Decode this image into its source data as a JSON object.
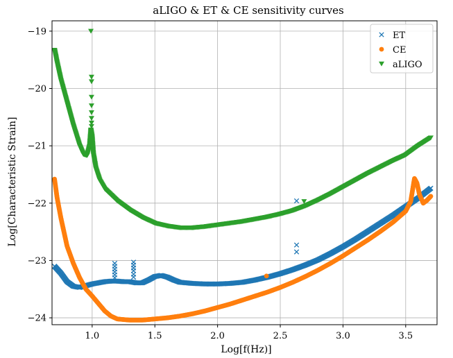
{
  "chart_data": {
    "type": "scatter",
    "title": "aLIGO & ET & CE sensitivity curves",
    "xlabel": "Log[f(Hz)]",
    "ylabel": "Log[Characteristic Strain]",
    "xlim": [
      0.68,
      3.75
    ],
    "ylim": [
      -24.12,
      -18.82
    ],
    "xticks": [
      1.0,
      1.5,
      2.0,
      2.5,
      3.0,
      3.5
    ],
    "xtick_labels": [
      "1.0",
      "1.5",
      "2.0",
      "2.5",
      "3.0",
      "3.5"
    ],
    "yticks": [
      -24,
      -23,
      -22,
      -21,
      -20,
      -19
    ],
    "ytick_labels": [
      "−24",
      "−23",
      "−22",
      "−21",
      "−20",
      "−19"
    ],
    "grid": true,
    "legend_position": "top-right",
    "series": [
      {
        "name": "ET",
        "marker": "x",
        "color": "#1f77b4",
        "points": [
          [
            0.7,
            -23.1
          ],
          [
            0.75,
            -23.22
          ],
          [
            0.8,
            -23.37
          ],
          [
            0.85,
            -23.45
          ],
          [
            0.9,
            -23.47
          ],
          [
            0.95,
            -23.44
          ],
          [
            1.0,
            -23.41
          ],
          [
            1.05,
            -23.39
          ],
          [
            1.1,
            -23.37
          ],
          [
            1.15,
            -23.36
          ],
          [
            1.2,
            -23.36
          ],
          [
            1.25,
            -23.37
          ],
          [
            1.3,
            -23.37
          ],
          [
            1.35,
            -23.39
          ],
          [
            1.4,
            -23.39
          ],
          [
            1.45,
            -23.34
          ],
          [
            1.5,
            -23.28
          ],
          [
            1.55,
            -23.26
          ],
          [
            1.6,
            -23.29
          ],
          [
            1.65,
            -23.34
          ],
          [
            1.7,
            -23.38
          ],
          [
            1.8,
            -23.4
          ],
          [
            1.9,
            -23.41
          ],
          [
            2.0,
            -23.41
          ],
          [
            2.1,
            -23.4
          ],
          [
            2.2,
            -23.38
          ],
          [
            2.3,
            -23.34
          ],
          [
            2.4,
            -23.29
          ],
          [
            2.5,
            -23.23
          ],
          [
            2.6,
            -23.16
          ],
          [
            2.7,
            -23.08
          ],
          [
            2.8,
            -22.99
          ],
          [
            2.9,
            -22.88
          ],
          [
            3.0,
            -22.76
          ],
          [
            3.1,
            -22.63
          ],
          [
            3.2,
            -22.49
          ],
          [
            3.3,
            -22.35
          ],
          [
            3.4,
            -22.21
          ],
          [
            3.5,
            -22.06
          ],
          [
            3.6,
            -21.91
          ],
          [
            3.7,
            -21.74
          ]
        ],
        "outliers": [
          [
            1.18,
            -23.05
          ],
          [
            1.18,
            -23.1
          ],
          [
            1.18,
            -23.15
          ],
          [
            1.18,
            -23.2
          ],
          [
            1.18,
            -23.25
          ],
          [
            1.18,
            -23.3
          ],
          [
            1.33,
            -23.03
          ],
          [
            1.33,
            -23.08
          ],
          [
            1.33,
            -23.13
          ],
          [
            1.33,
            -23.18
          ],
          [
            1.33,
            -23.24
          ],
          [
            1.33,
            -23.29
          ],
          [
            2.63,
            -21.96
          ],
          [
            2.63,
            -22.73
          ],
          [
            2.63,
            -22.85
          ]
        ]
      },
      {
        "name": "CE",
        "marker": "o",
        "color": "#ff7f0e",
        "points": [
          [
            0.7,
            -21.58
          ],
          [
            0.72,
            -21.9
          ],
          [
            0.75,
            -22.25
          ],
          [
            0.78,
            -22.55
          ],
          [
            0.8,
            -22.75
          ],
          [
            0.85,
            -23.05
          ],
          [
            0.9,
            -23.3
          ],
          [
            0.95,
            -23.5
          ],
          [
            1.0,
            -23.62
          ],
          [
            1.05,
            -23.75
          ],
          [
            1.1,
            -23.88
          ],
          [
            1.15,
            -23.97
          ],
          [
            1.2,
            -24.02
          ],
          [
            1.3,
            -24.04
          ],
          [
            1.4,
            -24.04
          ],
          [
            1.5,
            -24.02
          ],
          [
            1.6,
            -24.0
          ],
          [
            1.7,
            -23.97
          ],
          [
            1.8,
            -23.93
          ],
          [
            1.9,
            -23.88
          ],
          [
            2.0,
            -23.82
          ],
          [
            2.1,
            -23.76
          ],
          [
            2.2,
            -23.69
          ],
          [
            2.3,
            -23.62
          ],
          [
            2.4,
            -23.55
          ],
          [
            2.5,
            -23.47
          ],
          [
            2.6,
            -23.38
          ],
          [
            2.7,
            -23.28
          ],
          [
            2.8,
            -23.17
          ],
          [
            2.9,
            -23.05
          ],
          [
            3.0,
            -22.92
          ],
          [
            3.1,
            -22.78
          ],
          [
            3.2,
            -22.64
          ],
          [
            3.3,
            -22.49
          ],
          [
            3.4,
            -22.33
          ],
          [
            3.5,
            -22.14
          ],
          [
            3.54,
            -21.97
          ],
          [
            3.56,
            -21.7
          ],
          [
            3.57,
            -21.57
          ],
          [
            3.59,
            -21.65
          ],
          [
            3.61,
            -21.85
          ],
          [
            3.64,
            -22.0
          ],
          [
            3.67,
            -21.95
          ],
          [
            3.7,
            -21.88
          ]
        ],
        "outliers": [
          [
            2.39,
            -23.27
          ]
        ]
      },
      {
        "name": "aLIGO",
        "marker": "v",
        "color": "#2ca02c",
        "points": [
          [
            0.7,
            -19.33
          ],
          [
            0.72,
            -19.55
          ],
          [
            0.75,
            -19.85
          ],
          [
            0.8,
            -20.25
          ],
          [
            0.85,
            -20.65
          ],
          [
            0.9,
            -21.0
          ],
          [
            0.93,
            -21.15
          ],
          [
            0.96,
            -21.17
          ],
          [
            0.98,
            -21.0
          ],
          [
            0.99,
            -20.72
          ],
          [
            1.0,
            -20.85
          ],
          [
            1.01,
            -21.15
          ],
          [
            1.03,
            -21.4
          ],
          [
            1.06,
            -21.6
          ],
          [
            1.1,
            -21.75
          ],
          [
            1.2,
            -21.96
          ],
          [
            1.3,
            -22.12
          ],
          [
            1.4,
            -22.25
          ],
          [
            1.5,
            -22.35
          ],
          [
            1.6,
            -22.4
          ],
          [
            1.7,
            -22.43
          ],
          [
            1.8,
            -22.43
          ],
          [
            1.9,
            -22.41
          ],
          [
            2.0,
            -22.38
          ],
          [
            2.1,
            -22.35
          ],
          [
            2.2,
            -22.32
          ],
          [
            2.3,
            -22.28
          ],
          [
            2.4,
            -22.24
          ],
          [
            2.5,
            -22.19
          ],
          [
            2.6,
            -22.13
          ],
          [
            2.7,
            -22.05
          ],
          [
            2.8,
            -21.95
          ],
          [
            2.9,
            -21.84
          ],
          [
            3.0,
            -21.72
          ],
          [
            3.1,
            -21.6
          ],
          [
            3.2,
            -21.48
          ],
          [
            3.3,
            -21.37
          ],
          [
            3.4,
            -21.26
          ],
          [
            3.5,
            -21.16
          ],
          [
            3.6,
            -21.0
          ],
          [
            3.7,
            -20.86
          ]
        ],
        "outliers": [
          [
            0.99,
            -19.0
          ],
          [
            0.995,
            -19.8
          ],
          [
            0.995,
            -19.88
          ],
          [
            0.995,
            -20.15
          ],
          [
            0.995,
            -20.3
          ],
          [
            0.995,
            -20.42
          ],
          [
            0.995,
            -20.52
          ],
          [
            0.995,
            -20.6
          ],
          [
            0.995,
            -20.66
          ],
          [
            2.69,
            -21.97
          ]
        ]
      }
    ]
  }
}
